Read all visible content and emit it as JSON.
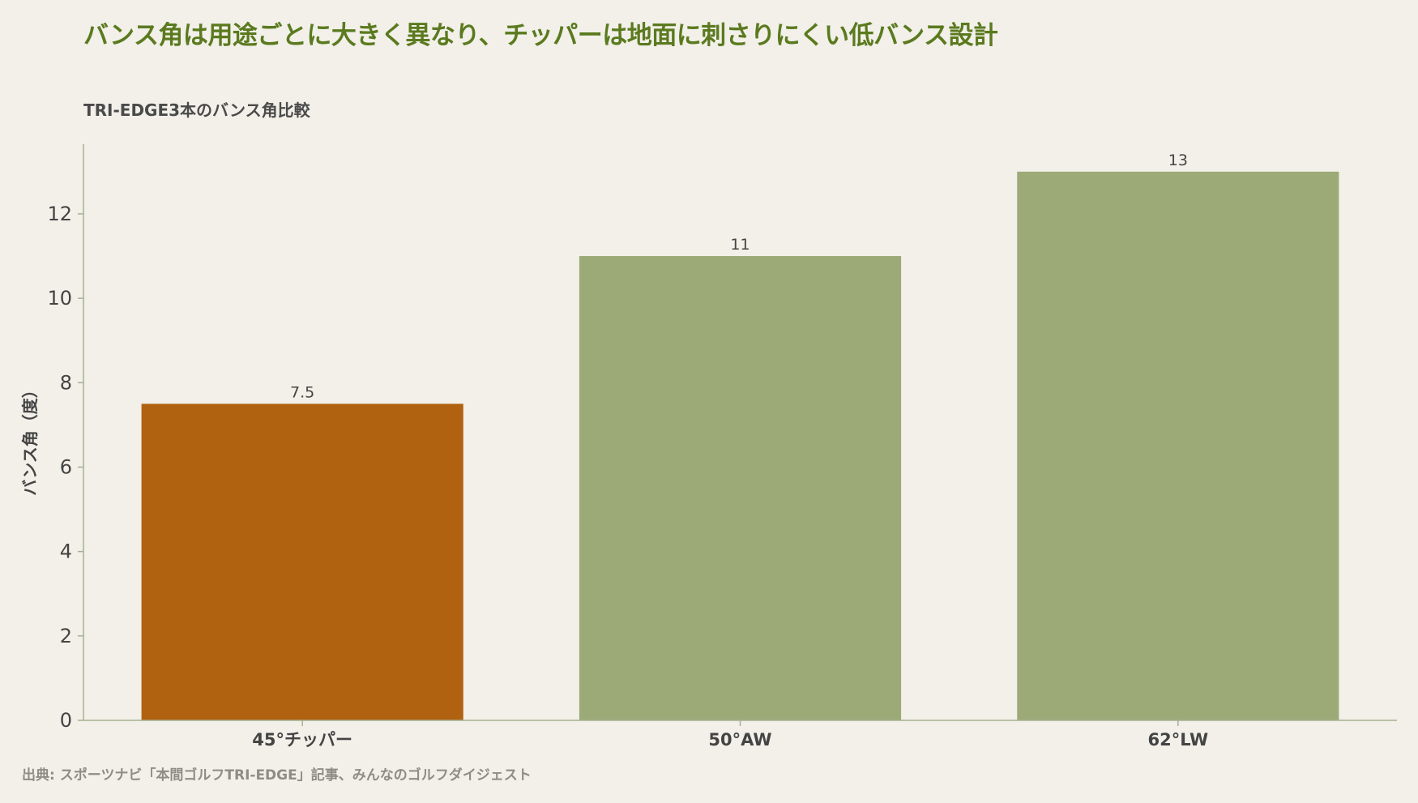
{
  "title": "バンス角は用途ごとに大きく異なり、チッパーは地面に刺さりにくい低バンス設計",
  "subtitle": "TRI-EDGE3本のバンス角比較",
  "source": "出典: スポーツナビ「本間ゴルフTRI-EDGE」記事、みんなのゴルフダイジェスト",
  "colors": {
    "background": "#f2f0e9",
    "title": "#5b7a1f",
    "highlight_bar": "#b06210",
    "default_bar": "#9caa77",
    "axis": "#a7b092",
    "text": "#444444"
  },
  "chart_data": {
    "type": "bar",
    "categories": [
      "45°チッパー",
      "50°AW",
      "62°LW"
    ],
    "values": [
      7.5,
      11,
      13
    ],
    "value_labels": [
      "7.5",
      "11",
      "13"
    ],
    "highlight_index": 0,
    "xlabel": "",
    "ylabel": "バンス角（度）",
    "ylim": [
      0,
      13.65
    ],
    "yticks": [
      0,
      2,
      4,
      6,
      8,
      10,
      12
    ],
    "grid": false,
    "legend": "none"
  }
}
